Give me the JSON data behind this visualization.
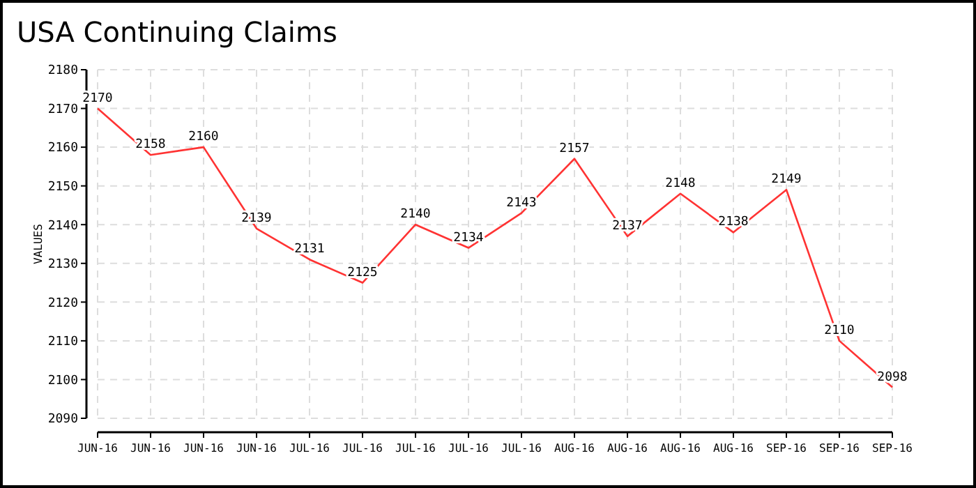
{
  "chart_data": {
    "type": "line",
    "title": "USA Continuing Claims",
    "ylabel": "VALUES",
    "categories": [
      "JUN-16",
      "JUN-16",
      "JUN-16",
      "JUN-16",
      "JUL-16",
      "JUL-16",
      "JUL-16",
      "JUL-16",
      "JUL-16",
      "AUG-16",
      "AUG-16",
      "AUG-16",
      "AUG-16",
      "SEP-16",
      "SEP-16",
      "SEP-16"
    ],
    "series": [
      {
        "color": "#ff3333",
        "values": [
          2170,
          2158,
          2160,
          2139,
          2131,
          2125,
          2140,
          2134,
          2143,
          2157,
          2137,
          2148,
          2138,
          2149,
          2110,
          2098
        ]
      }
    ],
    "ylim": [
      2090,
      2180
    ],
    "yticks": [
      2090,
      2100,
      2110,
      2120,
      2130,
      2140,
      2150,
      2160,
      2170,
      2180
    ],
    "grid": true,
    "data_labels": true,
    "marker": "none",
    "line_style": "solid"
  }
}
